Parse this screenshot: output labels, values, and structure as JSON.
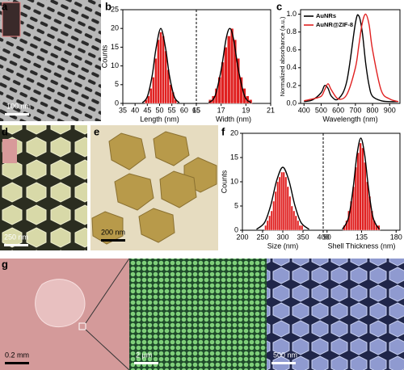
{
  "panels": {
    "a": {
      "label": "a",
      "scale_bar": "100 nm"
    },
    "b": {
      "label": "b"
    },
    "c": {
      "label": "c"
    },
    "d": {
      "label": "d",
      "scale_bar": "250 nm"
    },
    "e": {
      "label": "e",
      "scale_bar": "200 nm"
    },
    "f": {
      "label": "f"
    },
    "g": {
      "label": "g",
      "scale_bars": [
        "0.2 mm",
        "2 µm",
        "500 nm"
      ]
    }
  },
  "chart_data": [
    {
      "type": "histogram",
      "ylabel": "Counts",
      "xlabel": "Length (nm)",
      "bins": [
        44,
        45,
        46,
        47,
        48,
        49,
        50,
        51,
        52,
        53,
        54,
        55,
        56,
        57
      ],
      "counts": [
        1,
        2,
        4,
        7,
        12,
        17,
        19,
        18,
        14,
        9,
        5,
        3,
        1
      ],
      "color": "#e02020",
      "fit": {
        "x": [
          43,
          45,
          47,
          48.5,
          50.5,
          52.5,
          54,
          56,
          58
        ],
        "values": [
          0.2,
          1.8,
          7.5,
          14.5,
          20,
          14.5,
          7.5,
          1.8,
          0.2
        ],
        "color": "#000000"
      },
      "xlim": [
        35,
        65
      ],
      "xticks": [
        35,
        40,
        45,
        50,
        55,
        60,
        65
      ],
      "ylim": [
        0,
        25
      ],
      "yticks": [
        0,
        5,
        10,
        15,
        20,
        25
      ]
    },
    {
      "type": "histogram",
      "xlabel": "Width (nm)",
      "bins": [
        16,
        16.25,
        16.5,
        16.75,
        17,
        17.25,
        17.5,
        17.75,
        18,
        18.25,
        18.5,
        18.75,
        19,
        19.25,
        19.5
      ],
      "counts": [
        1,
        2,
        4,
        7,
        11,
        15,
        18,
        20,
        17,
        12,
        7,
        4,
        2,
        1
      ],
      "color": "#e02020",
      "fit": {
        "x": [
          16,
          16.5,
          17,
          17.4,
          17.7,
          18,
          18.4,
          18.9,
          19.4
        ],
        "values": [
          0.2,
          1.9,
          8.9,
          17.2,
          20,
          17.2,
          8.9,
          1.9,
          0.2
        ],
        "color": "#000000"
      },
      "xlim": [
        15,
        21
      ],
      "xticks": [
        15,
        17,
        19,
        21
      ],
      "ylim": [
        0,
        25
      ]
    },
    {
      "type": "line",
      "xlabel": "Wavelength (nm)",
      "ylabel": "Normalized absorbance (a.u.)",
      "legend": "upper left",
      "x": [
        400,
        450,
        500,
        520,
        540,
        560,
        600,
        650,
        700,
        720,
        740,
        760,
        780,
        800,
        850,
        900,
        950
      ],
      "series": [
        {
          "name": "AuNRs",
          "color": "#000000",
          "values": [
            0.02,
            0.04,
            0.12,
            0.2,
            0.17,
            0.08,
            0.05,
            0.25,
            0.9,
            0.98,
            0.8,
            0.45,
            0.2,
            0.08,
            0.03,
            0.02,
            0.02
          ]
        },
        {
          "name": "AuNR@ZIF-8",
          "color": "#e02020",
          "values": [
            0.03,
            0.05,
            0.08,
            0.15,
            0.22,
            0.15,
            0.05,
            0.1,
            0.4,
            0.65,
            0.9,
            1.0,
            0.88,
            0.6,
            0.15,
            0.05,
            0.02
          ]
        }
      ],
      "xlim": [
        380,
        960
      ],
      "xticks": [
        400,
        500,
        600,
        700,
        800,
        900
      ],
      "ylim": [
        0,
        1.05
      ],
      "yticks": [
        {
          "value": 0,
          "label": "0.0"
        },
        {
          "value": 0.2,
          "label": "0.2"
        },
        {
          "value": 0.4,
          "label": "0.4"
        },
        {
          "value": 0.6,
          "label": "0.6"
        },
        {
          "value": 0.8,
          "label": "0.8"
        },
        {
          "value": 1.0,
          "label": "1.0"
        }
      ]
    },
    {
      "type": "histogram",
      "ylabel": "Counts",
      "xlabel": "Size (nm)",
      "bins": [
        255,
        260,
        265,
        270,
        275,
        280,
        285,
        290,
        295,
        300,
        305,
        310,
        315,
        320,
        325,
        330,
        335,
        340,
        345,
        350
      ],
      "counts": [
        1,
        2,
        3,
        4,
        6,
        8,
        10,
        11,
        12,
        12,
        11,
        9,
        7,
        5,
        4,
        3,
        2,
        1,
        1
      ],
      "color": "#e02020",
      "fit": {
        "x": [
          235,
          255,
          270,
          285,
          300,
          315,
          330,
          345,
          365
        ],
        "values": [
          0.2,
          1.6,
          5.1,
          10.3,
          13,
          10.3,
          5.1,
          1.6,
          0.2
        ],
        "color": "#000000"
      },
      "xlim": [
        200,
        400
      ],
      "xticks": [
        200,
        250,
        300,
        350,
        400
      ],
      "ylim": [
        0,
        20
      ],
      "yticks": [
        0,
        5,
        10,
        15,
        20
      ]
    },
    {
      "type": "histogram",
      "xlabel": "Shell Thickness (nm)",
      "bins": [
        111,
        114,
        117,
        120,
        123,
        126,
        129,
        132,
        135,
        138,
        141,
        144,
        147,
        150,
        153,
        156,
        159
      ],
      "counts": [
        1,
        2,
        4,
        6,
        9,
        13,
        16,
        18,
        17,
        14,
        10,
        7,
        4,
        2,
        1,
        1
      ],
      "color": "#e02020",
      "fit": {
        "x": [
          110,
          118,
          124,
          129,
          134,
          139,
          144,
          150,
          158
        ],
        "values": [
          0.2,
          2.6,
          8.7,
          15.6,
          19,
          15.6,
          8.7,
          2.6,
          0.2
        ],
        "color": "#000000"
      },
      "xlim": [
        85,
        185
      ],
      "xticks": [
        90,
        135,
        180
      ],
      "ylim": [
        0,
        20
      ]
    }
  ]
}
